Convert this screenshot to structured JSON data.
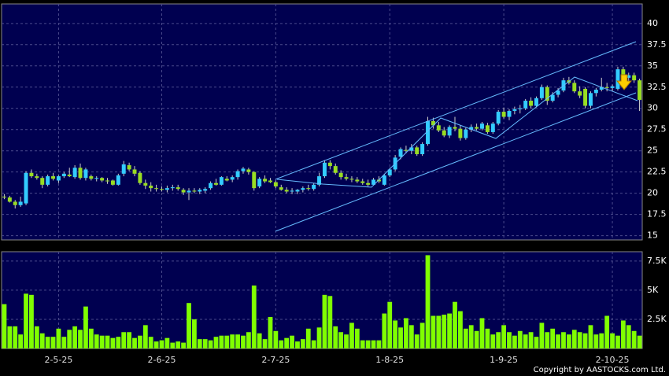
{
  "chart_data": {
    "type": "candlestick",
    "categories": [
      null,
      null,
      null,
      null,
      null,
      null,
      null,
      null,
      null,
      null,
      "2-5-25",
      null,
      null,
      null,
      null,
      null,
      null,
      null,
      null,
      null,
      null,
      null,
      null,
      null,
      null,
      null,
      null,
      null,
      null,
      "2-6-25",
      null,
      null,
      null,
      null,
      null,
      null,
      null,
      null,
      null,
      null,
      null,
      null,
      null,
      null,
      null,
      null,
      null,
      null,
      null,
      null,
      "2-7-25",
      null,
      null,
      null,
      null,
      null,
      null,
      null,
      null,
      null,
      null,
      null,
      null,
      null,
      null,
      null,
      null,
      null,
      null,
      null,
      null,
      "1-8-25",
      null,
      null,
      null,
      null,
      null,
      null,
      null,
      null,
      null,
      null,
      null,
      null,
      null,
      null,
      null,
      null,
      null,
      null,
      null,
      null,
      "1-9-25",
      null,
      null,
      null,
      null,
      null,
      null,
      null,
      null,
      null,
      null,
      null,
      null,
      null,
      null,
      null,
      null,
      null,
      null,
      null,
      "2-10-25",
      null,
      null,
      null,
      null,
      null
    ],
    "ohlc": [
      [
        19.6,
        19.9,
        19.3,
        19.5
      ],
      [
        19.5,
        19.7,
        18.9,
        19.0
      ],
      [
        19.0,
        19.2,
        18.2,
        18.6
      ],
      [
        18.6,
        19.6,
        18.4,
        19.0
      ],
      [
        18.8,
        22.6,
        18.6,
        22.4
      ],
      [
        22.4,
        22.8,
        21.8,
        22.0
      ],
      [
        22.0,
        22.3,
        21.6,
        21.8
      ],
      [
        21.8,
        22.0,
        20.6,
        21.0
      ],
      [
        21.0,
        22.2,
        20.8,
        22.0
      ],
      [
        22.0,
        22.4,
        21.5,
        21.7
      ],
      [
        21.5,
        22.1,
        21.2,
        22.0
      ],
      [
        22.0,
        22.5,
        21.8,
        22.3
      ],
      [
        22.2,
        23.0,
        21.9,
        22.0
      ],
      [
        21.9,
        23.3,
        21.7,
        23.0
      ],
      [
        23.0,
        23.5,
        21.6,
        21.8
      ],
      [
        21.8,
        23.0,
        21.5,
        22.8
      ],
      [
        22.0,
        22.2,
        21.5,
        21.7
      ],
      [
        21.7,
        22.0,
        21.4,
        21.8
      ],
      [
        21.8,
        21.9,
        21.3,
        21.5
      ],
      [
        21.5,
        21.8,
        21.1,
        21.4
      ],
      [
        21.5,
        21.6,
        20.9,
        21.0
      ],
      [
        21.0,
        22.3,
        20.9,
        22.1
      ],
      [
        22.3,
        23.8,
        22.0,
        23.4
      ],
      [
        23.3,
        23.6,
        22.6,
        22.8
      ],
      [
        22.8,
        23.2,
        22.0,
        22.3
      ],
      [
        22.4,
        22.6,
        21.0,
        21.2
      ],
      [
        21.2,
        21.6,
        20.5,
        20.9
      ],
      [
        20.9,
        21.3,
        20.2,
        20.6
      ],
      [
        20.6,
        21.0,
        20.2,
        20.5
      ],
      [
        20.5,
        20.8,
        20.2,
        20.4
      ],
      [
        20.4,
        20.9,
        20.1,
        20.6
      ],
      [
        20.6,
        21.0,
        20.3,
        20.7
      ],
      [
        20.7,
        21.0,
        20.3,
        20.5
      ],
      [
        20.4,
        20.6,
        19.8,
        20.1
      ],
      [
        20.1,
        20.6,
        19.2,
        20.3
      ],
      [
        20.3,
        20.6,
        20.0,
        20.2
      ],
      [
        20.2,
        20.6,
        19.9,
        20.4
      ],
      [
        20.3,
        20.7,
        20.0,
        20.5
      ],
      [
        20.6,
        21.4,
        20.4,
        21.2
      ],
      [
        21.2,
        21.7,
        20.9,
        21.0
      ],
      [
        21.0,
        22.0,
        20.9,
        21.9
      ],
      [
        21.7,
        22.0,
        21.4,
        21.5
      ],
      [
        21.6,
        22.1,
        21.3,
        21.9
      ],
      [
        21.9,
        22.8,
        21.6,
        22.6
      ],
      [
        22.6,
        23.1,
        22.3,
        22.9
      ],
      [
        22.8,
        23.0,
        22.2,
        22.5
      ],
      [
        22.5,
        22.6,
        20.3,
        20.6
      ],
      [
        20.8,
        21.9,
        20.6,
        21.7
      ],
      [
        21.7,
        22.1,
        21.2,
        21.4
      ],
      [
        21.5,
        21.8,
        21.2,
        21.3
      ],
      [
        21.3,
        21.5,
        20.6,
        20.8
      ],
      [
        20.7,
        21.0,
        20.3,
        20.4
      ],
      [
        20.4,
        20.7,
        20.0,
        20.2
      ],
      [
        20.2,
        20.6,
        19.9,
        20.3
      ],
      [
        20.2,
        20.5,
        19.9,
        20.4
      ],
      [
        20.4,
        20.8,
        20.1,
        20.6
      ],
      [
        20.6,
        21.0,
        20.3,
        20.5
      ],
      [
        20.5,
        21.2,
        20.3,
        21.0
      ],
      [
        21.0,
        22.4,
        20.8,
        22.0
      ],
      [
        22.0,
        23.9,
        21.8,
        23.6
      ],
      [
        23.6,
        23.9,
        22.8,
        23.2
      ],
      [
        23.2,
        23.5,
        22.2,
        22.4
      ],
      [
        22.4,
        22.7,
        21.6,
        21.9
      ],
      [
        21.9,
        22.3,
        21.5,
        21.7
      ],
      [
        21.7,
        22.0,
        21.3,
        21.6
      ],
      [
        21.6,
        21.9,
        21.2,
        21.4
      ],
      [
        21.4,
        21.7,
        21.0,
        21.2
      ],
      [
        21.2,
        21.6,
        20.8,
        21.0
      ],
      [
        21.0,
        21.8,
        20.9,
        21.6
      ],
      [
        21.6,
        22.0,
        21.2,
        21.4
      ],
      [
        21.0,
        22.3,
        20.9,
        22.1
      ],
      [
        22.1,
        23.0,
        21.9,
        22.8
      ],
      [
        22.8,
        24.5,
        22.6,
        24.2
      ],
      [
        24.3,
        25.4,
        24.0,
        25.2
      ],
      [
        25.1,
        25.6,
        24.7,
        25.0
      ],
      [
        25.0,
        25.8,
        24.6,
        25.4
      ],
      [
        25.4,
        25.6,
        24.4,
        24.6
      ],
      [
        24.6,
        26.0,
        24.4,
        25.8
      ],
      [
        25.8,
        29.0,
        25.6,
        28.5
      ],
      [
        28.5,
        28.9,
        27.6,
        28.0
      ],
      [
        28.0,
        28.4,
        27.2,
        27.4
      ],
      [
        27.4,
        27.8,
        26.6,
        26.8
      ],
      [
        26.8,
        28.0,
        26.5,
        27.8
      ],
      [
        27.8,
        29.0,
        27.3,
        27.6
      ],
      [
        27.6,
        28.0,
        26.2,
        26.5
      ],
      [
        26.5,
        27.7,
        26.3,
        27.5
      ],
      [
        27.5,
        28.1,
        27.2,
        27.8
      ],
      [
        27.8,
        28.2,
        27.4,
        27.6
      ],
      [
        27.6,
        28.4,
        27.4,
        28.2
      ],
      [
        28.0,
        28.3,
        27.0,
        27.2
      ],
      [
        27.2,
        28.4,
        27.0,
        28.2
      ],
      [
        28.2,
        29.8,
        28.0,
        29.6
      ],
      [
        29.6,
        30.1,
        28.8,
        29.0
      ],
      [
        29.0,
        29.9,
        28.6,
        29.7
      ],
      [
        29.7,
        30.2,
        29.3,
        29.9
      ],
      [
        29.9,
        30.4,
        29.4,
        30.0
      ],
      [
        30.0,
        31.1,
        29.8,
        30.9
      ],
      [
        30.9,
        31.3,
        30.0,
        30.3
      ],
      [
        30.3,
        31.4,
        30.1,
        31.2
      ],
      [
        31.2,
        32.8,
        31.0,
        32.5
      ],
      [
        32.5,
        32.7,
        30.4,
        30.9
      ],
      [
        30.9,
        31.9,
        30.7,
        31.6
      ],
      [
        31.6,
        32.4,
        31.3,
        32.1
      ],
      [
        32.1,
        33.6,
        31.9,
        33.3
      ],
      [
        33.3,
        33.7,
        32.8,
        33.0
      ],
      [
        33.0,
        33.3,
        31.8,
        32.0
      ],
      [
        32.0,
        32.6,
        31.2,
        31.5
      ],
      [
        32.3,
        32.5,
        30.0,
        30.3
      ],
      [
        30.3,
        32.0,
        30.0,
        31.8
      ],
      [
        31.8,
        32.4,
        31.4,
        32.2
      ],
      [
        32.2,
        33.6,
        32.0,
        32.5
      ],
      [
        32.5,
        33.0,
        32.0,
        32.4
      ],
      [
        32.4,
        32.8,
        32.0,
        32.6
      ],
      [
        32.3,
        34.9,
        32.1,
        34.6
      ],
      [
        34.6,
        34.9,
        33.2,
        33.6
      ],
      [
        33.6,
        34.2,
        33.0,
        33.9
      ],
      [
        33.9,
        34.2,
        33.0,
        33.3
      ],
      [
        33.3,
        33.5,
        29.7,
        31.0
      ]
    ],
    "volume": [
      3800,
      1900,
      1900,
      1200,
      4700,
      4600,
      1900,
      1300,
      1000,
      1000,
      1700,
      1000,
      1600,
      1900,
      1600,
      3600,
      1700,
      1200,
      1100,
      1100,
      900,
      1000,
      1400,
      1400,
      900,
      1100,
      2000,
      1000,
      600,
      700,
      900,
      500,
      600,
      500,
      3900,
      2500,
      800,
      800,
      700,
      1000,
      1100,
      1100,
      1200,
      1200,
      1100,
      1400,
      5400,
      1300,
      800,
      2700,
      1500,
      700,
      900,
      1100,
      600,
      800,
      1700,
      700,
      1800,
      4600,
      4500,
      1900,
      1400,
      1200,
      2200,
      1700,
      700,
      700,
      700,
      700,
      3000,
      4000,
      2400,
      1800,
      2600,
      2000,
      1200,
      2200,
      8000,
      2800,
      2800,
      2900,
      3000,
      4000,
      3200,
      1700,
      2000,
      1500,
      2600,
      1700,
      1200,
      1400,
      2000,
      1400,
      1100,
      1500,
      1200,
      1400,
      1000,
      2200,
      1400,
      1700,
      1200,
      1400,
      1200,
      1600,
      1400,
      1300,
      2000,
      1200,
      1300,
      2800,
      1300,
      1100,
      2400,
      2000,
      1500,
      1100
    ],
    "up_color": "#33ccff",
    "down_color": "#99dd22",
    "volume_color": "#80ff00",
    "ylim": [
      14.5,
      42.3
    ],
    "yticks": [
      15,
      17.5,
      20,
      22.5,
      25,
      27.5,
      30,
      32.5,
      35,
      37.5,
      40
    ],
    "volume_ylim": [
      0,
      8300
    ],
    "volume_yticks": [
      {
        "value": 2500,
        "label": "2.5K"
      },
      {
        "value": 5000,
        "label": "5K"
      },
      {
        "value": 7500,
        "label": "7.5K"
      }
    ],
    "grid": true,
    "footer": "Copyright by AASTOCKS.com Ltd."
  }
}
